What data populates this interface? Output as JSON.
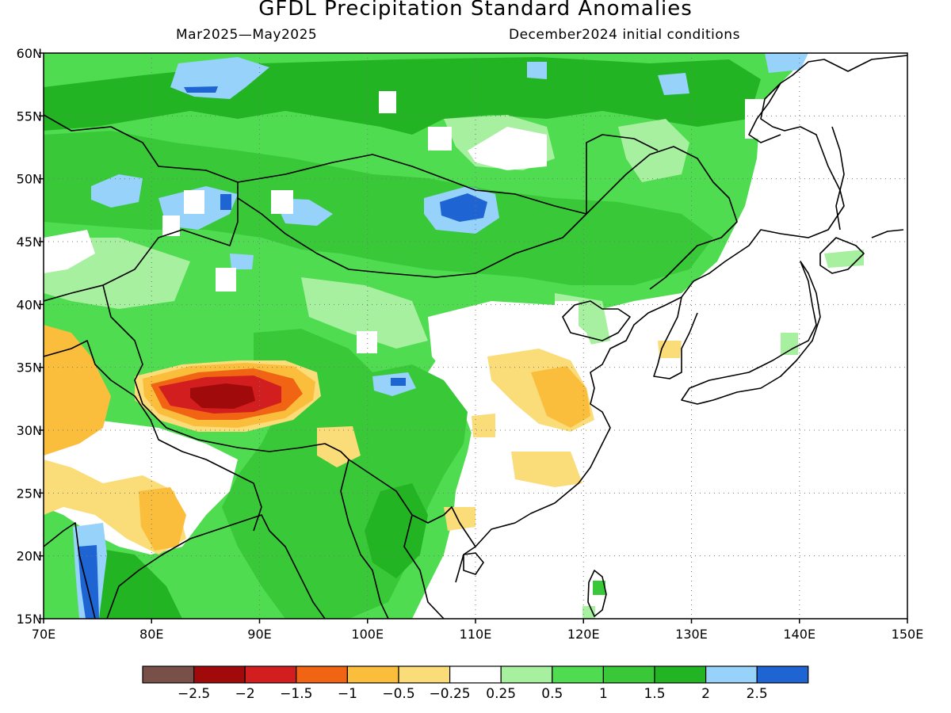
{
  "title": "GFDL Precipitation Standard Anomalies",
  "subtitle_left": "Mar2025—May2025",
  "subtitle_right": "December2024 initial conditions",
  "map": {
    "lon_range": [
      70,
      150
    ],
    "lat_range": [
      15,
      60
    ],
    "lon_ticks": [
      {
        "value": 70,
        "label": "70E"
      },
      {
        "value": 80,
        "label": "80E"
      },
      {
        "value": 90,
        "label": "90E"
      },
      {
        "value": 100,
        "label": "100E"
      },
      {
        "value": 110,
        "label": "110E"
      },
      {
        "value": 120,
        "label": "120E"
      },
      {
        "value": 130,
        "label": "130E"
      },
      {
        "value": 140,
        "label": "140E"
      },
      {
        "value": 150,
        "label": "150E"
      }
    ],
    "lat_ticks": [
      {
        "value": 60,
        "label": "60N"
      },
      {
        "value": 55,
        "label": "55N"
      },
      {
        "value": 50,
        "label": "50N"
      },
      {
        "value": 45,
        "label": "45N"
      },
      {
        "value": 40,
        "label": "40N"
      },
      {
        "value": 35,
        "label": "35N"
      },
      {
        "value": 30,
        "label": "30N"
      },
      {
        "value": 25,
        "label": "25N"
      },
      {
        "value": 20,
        "label": "20N"
      },
      {
        "value": 15,
        "label": "15N"
      }
    ],
    "colors": {
      "land_base": "#50dc50",
      "green_strong": "#22b422",
      "green_mid": "#38c838",
      "green_light": "#a6f0a0",
      "blue_light": "#96d2fa",
      "blue_dark": "#1e64d2",
      "yellow": "#fadc78",
      "orange_light": "#fabe3c",
      "orange": "#f06414",
      "red": "#d21e1e",
      "dark_red": "#a00a0a",
      "white": "#ffffff",
      "coast": "#000000"
    }
  },
  "legend": {
    "colors": [
      "#785048",
      "#a00a0a",
      "#d21e1e",
      "#f06414",
      "#fabe3c",
      "#fadc78",
      "#ffffff",
      "#a6f0a0",
      "#50dc50",
      "#38c838",
      "#22b422",
      "#96d2fa",
      "#1e64d2"
    ],
    "labels": [
      "−2.5",
      "−2",
      "−1.5",
      "−1",
      "−0.5",
      "−0.25",
      "0.25",
      "0.5",
      "1",
      "1.5",
      "2",
      "2.5"
    ]
  }
}
